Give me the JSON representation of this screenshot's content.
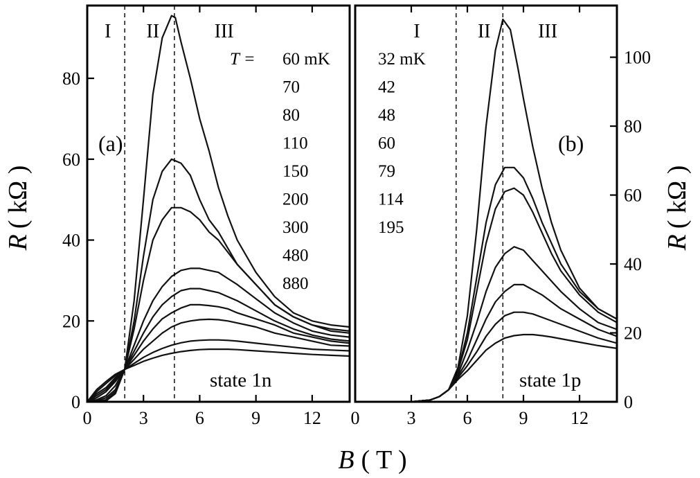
{
  "chart_data": [
    {
      "type": "line",
      "panel_label": "(a)",
      "state_label": "state 1n",
      "xlabel_var": "B",
      "xlabel_unit": "( T )",
      "ylabel_var": "R",
      "ylabel_unit": "( kΩ )",
      "xlim": [
        0,
        14
      ],
      "ylim": [
        0,
        98
      ],
      "xticks": [
        0,
        3,
        6,
        9,
        12
      ],
      "yticks": [
        0,
        20,
        40,
        60,
        80
      ],
      "dashed_lines_x": [
        2.0,
        4.65
      ],
      "regions": [
        {
          "label": "I",
          "x": 1.1
        },
        {
          "label": "II",
          "x": 3.5
        },
        {
          "label": "III",
          "x": 7.3
        }
      ],
      "temperature_prefix": "T =",
      "temperatures": [
        "60 mK",
        "70",
        "80",
        "110",
        "150",
        "200",
        "300",
        "480",
        "880"
      ],
      "series": [
        {
          "x": [
            0,
            0.5,
            1,
            1.5,
            2,
            2.5,
            3,
            3.5,
            4,
            4.5,
            4.7,
            5,
            5.5,
            6,
            6.5,
            7,
            7.5,
            8,
            9,
            10,
            11,
            12,
            13,
            14
          ],
          "y": [
            0,
            0,
            0.2,
            2,
            8,
            25,
            50,
            76,
            90,
            95.5,
            95,
            89,
            80,
            70,
            62,
            53,
            46,
            40,
            32,
            26,
            22,
            20,
            19,
            18.5
          ]
        },
        {
          "x": [
            0,
            0.5,
            1,
            1.5,
            2,
            2.5,
            3,
            3.5,
            4,
            4.5,
            5,
            5.5,
            6,
            6.5,
            7,
            7.5,
            8,
            9,
            10,
            11,
            12,
            13,
            14
          ],
          "y": [
            0,
            0,
            0.5,
            2.5,
            8,
            20,
            36,
            50,
            57,
            60,
            59,
            56,
            50,
            45,
            42,
            38,
            34,
            29,
            24,
            21,
            19,
            18,
            17.5
          ]
        },
        {
          "x": [
            0,
            0.5,
            1,
            1.5,
            2,
            2.5,
            3,
            3.5,
            4,
            4.5,
            5,
            5.5,
            6,
            6.5,
            7,
            7.5,
            8,
            9,
            10,
            11,
            12,
            13,
            14
          ],
          "y": [
            0,
            0.2,
            1,
            3,
            8,
            18,
            30,
            40,
            45,
            48,
            48,
            47,
            45,
            42,
            40,
            37,
            34,
            29,
            24,
            21,
            19,
            17.5,
            17
          ]
        },
        {
          "x": [
            0,
            0.5,
            1,
            1.5,
            2,
            2.5,
            3,
            3.5,
            4,
            4.5,
            5,
            5.5,
            6,
            6.5,
            7,
            7.5,
            8,
            9,
            10,
            11,
            12,
            13,
            14
          ],
          "y": [
            0,
            0.5,
            1.5,
            4,
            8,
            14,
            20,
            25,
            28.5,
            31,
            32.5,
            33,
            33,
            32.5,
            32,
            30.5,
            29,
            25.5,
            22,
            19.5,
            17.5,
            16.5,
            16
          ]
        },
        {
          "x": [
            0,
            0.5,
            1,
            1.5,
            2,
            2.5,
            3,
            3.5,
            4,
            4.5,
            5,
            5.5,
            6,
            6.5,
            7,
            7.5,
            8,
            9,
            10,
            11,
            12,
            13,
            14
          ],
          "y": [
            0,
            1,
            2.5,
            5,
            8,
            12.5,
            17,
            21,
            24,
            26,
            27.5,
            28,
            28,
            27.5,
            27,
            26,
            25,
            22.5,
            20,
            18,
            16.5,
            15.5,
            15
          ]
        },
        {
          "x": [
            0,
            0.5,
            1,
            1.5,
            2,
            2.5,
            3,
            3.5,
            4,
            4.5,
            5,
            5.5,
            6,
            6.5,
            7,
            7.5,
            8,
            9,
            10,
            11,
            12,
            13,
            14
          ],
          "y": [
            0,
            1.5,
            3,
            5.5,
            8,
            11.5,
            15,
            18,
            20.5,
            22,
            23.2,
            24,
            24,
            23.8,
            23.5,
            23,
            22,
            20.5,
            19,
            17,
            16,
            15,
            14.5
          ]
        },
        {
          "x": [
            0,
            0.5,
            1,
            1.5,
            2,
            2.5,
            3,
            3.5,
            4,
            4.5,
            5,
            5.5,
            6,
            6.5,
            7,
            7.5,
            8,
            9,
            10,
            11,
            12,
            13,
            14
          ],
          "y": [
            0,
            2,
            3.5,
            6,
            8,
            10.5,
            13,
            15,
            17,
            18.5,
            19.5,
            20,
            20.3,
            20.4,
            20.3,
            20,
            19.5,
            18.5,
            17,
            16,
            15,
            14,
            13.8
          ]
        },
        {
          "x": [
            0,
            0.5,
            1,
            1.5,
            2,
            2.5,
            3,
            3.5,
            4,
            4.5,
            5,
            5.5,
            6,
            6.5,
            7,
            7.5,
            8,
            9,
            10,
            11,
            12,
            13,
            14
          ],
          "y": [
            0,
            2.5,
            4.5,
            6.5,
            8,
            9.5,
            11,
            12.2,
            13.2,
            14,
            14.6,
            15,
            15.2,
            15.3,
            15.3,
            15.2,
            15,
            14.5,
            14,
            13.5,
            13,
            12.8,
            12.6
          ]
        },
        {
          "x": [
            0,
            0.5,
            1,
            1.5,
            2,
            2.5,
            3,
            3.5,
            4,
            4.5,
            5,
            5.5,
            6,
            6.5,
            7,
            7.5,
            8,
            9,
            10,
            11,
            12,
            13,
            14
          ],
          "y": [
            0,
            3,
            5,
            6.8,
            8,
            9,
            10,
            10.8,
            11.5,
            12,
            12.4,
            12.7,
            12.9,
            13,
            13,
            13,
            12.9,
            12.6,
            12.3,
            12,
            11.7,
            11.5,
            11.3
          ]
        }
      ]
    },
    {
      "type": "line",
      "panel_label": "(b)",
      "state_label": "state 1p",
      "ylabel_var": "R",
      "ylabel_unit": "( kΩ )",
      "xlim": [
        0,
        14
      ],
      "ylim": [
        0,
        115
      ],
      "xticks": [
        0,
        3,
        6,
        9,
        12
      ],
      "yticks": [
        0,
        20,
        40,
        60,
        80,
        100
      ],
      "dashed_lines_x": [
        5.4,
        7.9
      ],
      "regions": [
        {
          "label": "I",
          "x": 3.3
        },
        {
          "label": "II",
          "x": 6.9
        },
        {
          "label": "III",
          "x": 10.3
        }
      ],
      "temperatures": [
        "32 mK",
        "42",
        "48",
        "60",
        "79",
        "114",
        "195"
      ],
      "series": [
        {
          "x": [
            0,
            3,
            4,
            4.5,
            5,
            5.5,
            6,
            6.5,
            7,
            7.5,
            7.9,
            8.3,
            8.7,
            9,
            9.5,
            10,
            10.5,
            11,
            12,
            13,
            14
          ],
          "y": [
            0,
            0,
            0.5,
            1.5,
            3.5,
            10,
            25,
            50,
            80,
            102,
            111,
            108,
            97,
            88,
            74,
            62,
            52,
            44,
            33,
            27,
            24
          ]
        },
        {
          "x": [
            0,
            3,
            4,
            4.5,
            5,
            5.5,
            6,
            6.5,
            7,
            7.5,
            8,
            8.5,
            9,
            9.5,
            10,
            10.5,
            11,
            12,
            13,
            14
          ],
          "y": [
            0,
            0,
            0.5,
            1.5,
            3.5,
            9,
            20,
            36,
            52,
            63,
            68,
            68,
            65,
            59,
            52,
            46,
            40,
            32,
            27,
            24
          ]
        },
        {
          "x": [
            0,
            3,
            4,
            4.5,
            5,
            5.5,
            6,
            6.5,
            7,
            7.5,
            8,
            8.5,
            9,
            9.5,
            10,
            10.5,
            11,
            12,
            13,
            14
          ],
          "y": [
            0,
            0,
            0.5,
            1.5,
            3.5,
            9,
            18,
            32,
            46,
            56,
            61,
            62,
            60,
            55,
            49,
            43,
            38,
            31,
            26,
            23
          ]
        },
        {
          "x": [
            0,
            3,
            4,
            4.5,
            5,
            5.5,
            6,
            6.5,
            7,
            7.5,
            8,
            8.5,
            9,
            9.5,
            10,
            10.5,
            11,
            12,
            13,
            14
          ],
          "y": [
            0,
            0,
            0.5,
            1.5,
            3.5,
            8,
            15,
            23,
            32,
            39,
            43,
            45,
            44,
            41,
            38,
            35,
            32,
            27,
            23,
            21
          ]
        },
        {
          "x": [
            0,
            3,
            4,
            4.5,
            5,
            5.5,
            6,
            6.5,
            7,
            7.5,
            8,
            8.5,
            9,
            9.5,
            10,
            10.5,
            11,
            12,
            13,
            14
          ],
          "y": [
            0,
            0,
            0.5,
            1.5,
            3.5,
            7.5,
            12,
            18,
            24,
            29,
            32,
            34,
            34,
            32.5,
            31,
            29,
            27,
            24,
            21,
            19
          ]
        },
        {
          "x": [
            0,
            3,
            4,
            4.5,
            5,
            5.5,
            6,
            6.5,
            7,
            7.5,
            8,
            8.5,
            9,
            9.5,
            10,
            10.5,
            11,
            12,
            13,
            14
          ],
          "y": [
            0,
            0,
            0.5,
            1.5,
            3.5,
            7,
            10.5,
            14.5,
            19,
            22.5,
            25,
            26,
            26,
            25.5,
            24.5,
            23.5,
            22.5,
            20.5,
            18.5,
            17
          ]
        },
        {
          "x": [
            0,
            3,
            4,
            4.5,
            5,
            5.5,
            6,
            6.5,
            7,
            7.5,
            8,
            8.5,
            9,
            9.5,
            10,
            10.5,
            11,
            12,
            13,
            14
          ],
          "y": [
            0,
            0,
            0.5,
            1.5,
            3.5,
            6.5,
            9,
            12,
            15,
            17,
            18.5,
            19.2,
            19.5,
            19.5,
            19.2,
            18.8,
            18.3,
            17.3,
            16.3,
            15.5
          ]
        }
      ]
    }
  ]
}
